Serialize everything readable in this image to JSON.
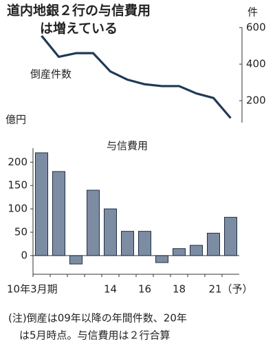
{
  "title": [
    "道内地銀２行の与信費用",
    "は増えている"
  ],
  "note": [
    "(注)倒産は09年以降の年間件数、20年",
    "は5月時点。与信費用は２行合算"
  ],
  "chart_data": [
    {
      "type": "line",
      "label": "倒産件数",
      "unit": "件",
      "values": [
        555,
        440,
        460,
        460,
        360,
        315,
        290,
        280,
        280,
        240,
        215,
        105
      ],
      "color": "#1f3a55",
      "y2lim": [
        80,
        600
      ],
      "y2ticks": [
        200,
        400,
        600
      ]
    },
    {
      "type": "bar",
      "title": "与信費用",
      "unit": "億円",
      "categories": [
        "10年3月期",
        null,
        null,
        null,
        "14",
        null,
        "16",
        null,
        "18",
        null,
        null,
        "21（予）"
      ],
      "values": [
        220,
        180,
        -18,
        140,
        100,
        52,
        52,
        -15,
        15,
        22,
        48,
        82
      ],
      "color": "#7b8ca3",
      "ylim": [
        -40,
        230
      ],
      "yticks": [
        0,
        50,
        100,
        150,
        200
      ]
    }
  ]
}
